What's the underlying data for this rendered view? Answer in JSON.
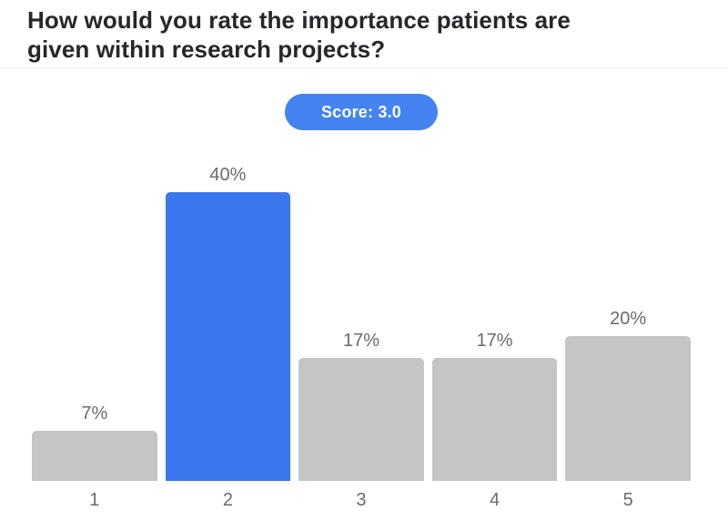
{
  "title": "How would you rate the importance patients are given within research projects?",
  "score_badge": {
    "label": "Score: 3.0"
  },
  "colors": {
    "accent_blue": "#3b77ee",
    "badge_blue": "#4483f0",
    "bar_gray": "#c5c5c5",
    "label_gray": "#6a6a70",
    "title_dark": "#26262b",
    "divider": "#eef2f8"
  },
  "chart_data": {
    "type": "bar",
    "title": "How would you rate the importance patients are given within research projects?",
    "score": 3.0,
    "categories": [
      "1",
      "2",
      "3",
      "4",
      "5"
    ],
    "values": [
      7,
      40,
      17,
      17,
      20
    ],
    "value_labels": [
      "7%",
      "40%",
      "17%",
      "17%",
      "20%"
    ],
    "highlighted_index": 1,
    "highlighted_category": "2",
    "unit": "percent",
    "xlabel": "",
    "ylabel": "",
    "ylim": [
      0,
      42
    ],
    "grid": false,
    "legend": false
  }
}
